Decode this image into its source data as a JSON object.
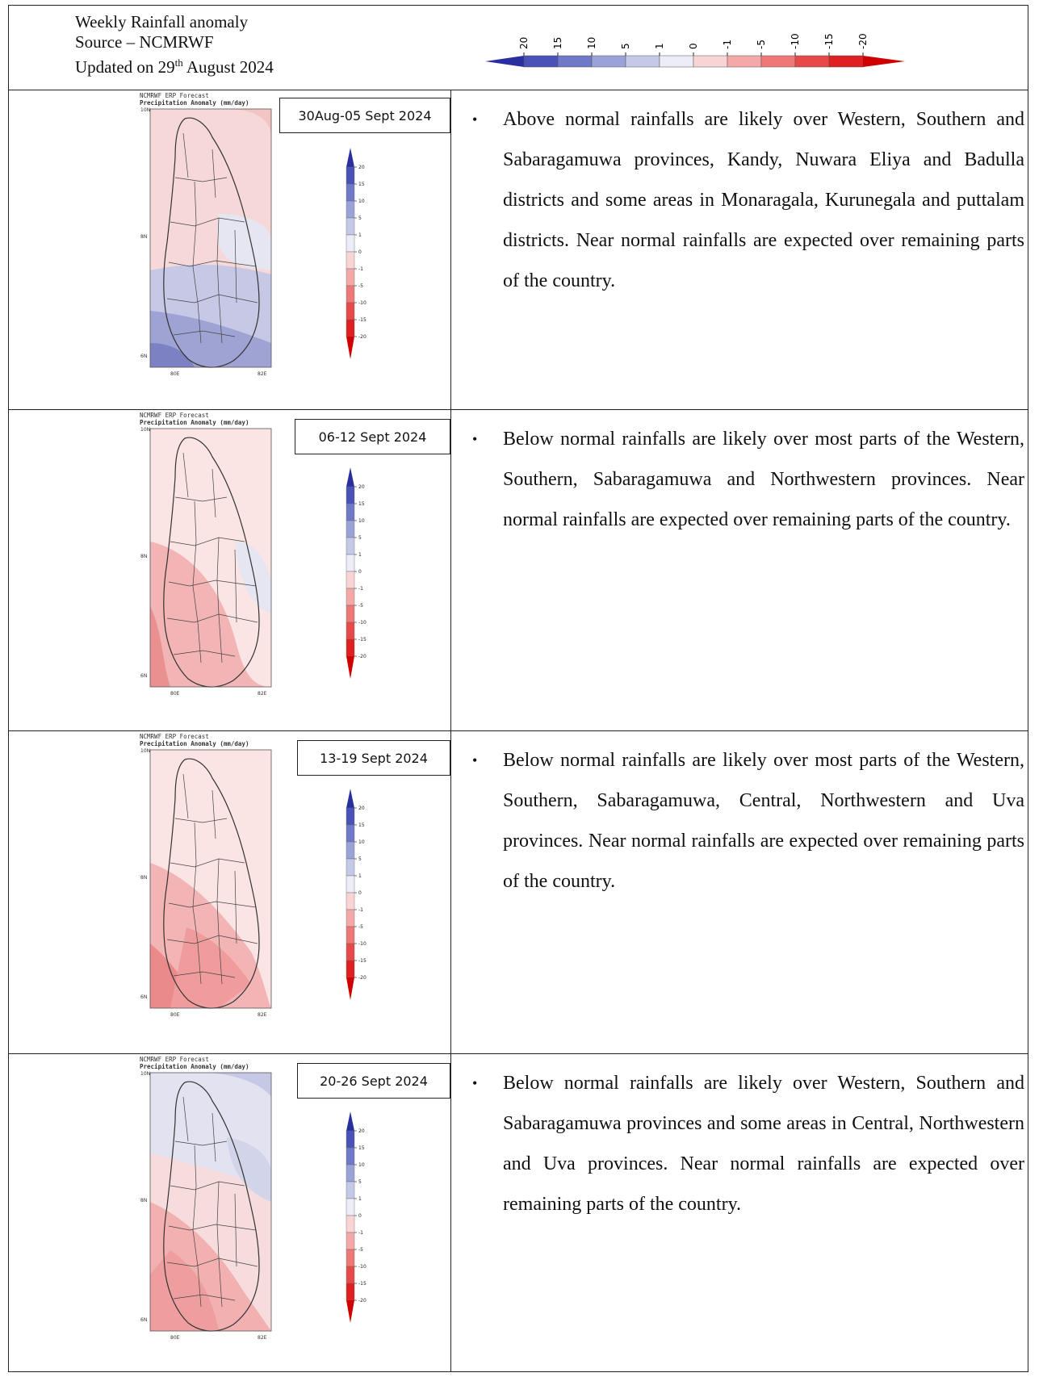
{
  "header": {
    "title": "Weekly Rainfall anomaly",
    "source": "Source – NCMRWF",
    "updated_prefix": "Updated on 29",
    "updated_sup": "th",
    "updated_suffix": " August 2024",
    "colorbar_labels": [
      "20",
      "15",
      "10",
      "5",
      "1",
      "0",
      "-1",
      "-5",
      "-10",
      "-15",
      "-20"
    ],
    "colorbar_colors": [
      "#2a2fa0",
      "#4a52b8",
      "#6f79c8",
      "#9aa3d8",
      "#c4c9e8",
      "#ecedf6",
      "#f8d4d4",
      "#f4a8a8",
      "#ee7878",
      "#e84848",
      "#e02020",
      "#d00000"
    ]
  },
  "map_labels": {
    "line1": "NCMRWF ERP Forecast",
    "line2": "Precipitation Anomaly (mm/day)",
    "lat_top": "10N",
    "lat_mid": "8N",
    "lat_bot": "6N",
    "lon_left": "80E",
    "lon_right": "82E",
    "cbar_labels": [
      "20",
      "15",
      "10",
      "5",
      "1",
      "0",
      "-1",
      "-5",
      "-10",
      "-15",
      "-20"
    ]
  },
  "rows": [
    {
      "date": "30Aug-05 Sept 2024",
      "bullet": "•",
      "text": "Above normal rainfalls are likely over Western, Southern and Sabaragamuwa provinces, Kandy, Nuwara Eliya and Badulla districts and some areas in Monaragala, Kurunegala and puttalam districts. Near normal rainfalls are expected over remaining parts of the country."
    },
    {
      "date": "06-12 Sept 2024",
      "bullet": "•",
      "text": "Below normal rainfalls are likely over most parts of the Western, Southern, Sabaragamuwa and Northwestern provinces. Near normal rainfalls are expected over remaining parts of the country."
    },
    {
      "date": "13-19 Sept 2024",
      "bullet": "•",
      "text": "Below normal rainfalls are likely over most parts of the Western, Southern, Sabaragamuwa, Central, Northwestern and Uva provinces. Near normal rainfalls are expected over remaining parts of the country."
    },
    {
      "date": "20-26 Sept 2024",
      "bullet": "•",
      "text": "Below normal rainfalls are likely over Western, Southern and Sabaragamuwa provinces and some areas in Central, Northwestern and Uva provinces. Near normal rainfalls are expected over remaining parts of the country."
    }
  ]
}
